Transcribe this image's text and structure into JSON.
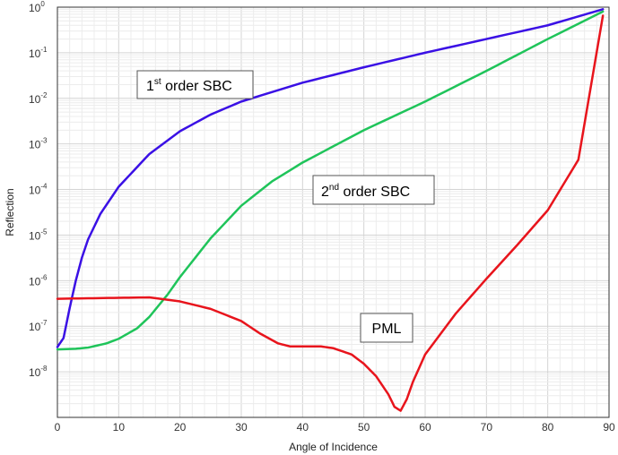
{
  "chart_data": {
    "type": "line",
    "xlabel": "Angle of Incidence",
    "ylabel": "Reflection",
    "xlim": [
      0,
      90
    ],
    "ylim_log10": [
      -9,
      0
    ],
    "y_scale": "log",
    "grid": true,
    "x_ticks": [
      "0",
      "10",
      "20",
      "30",
      "40",
      "50",
      "60",
      "70",
      "80",
      "90"
    ],
    "y_ticks": [
      {
        "base": "10",
        "exp": "0"
      },
      {
        "base": "10",
        "exp": "-1"
      },
      {
        "base": "10",
        "exp": "-2"
      },
      {
        "base": "10",
        "exp": "-3"
      },
      {
        "base": "10",
        "exp": "-4"
      },
      {
        "base": "10",
        "exp": "-5"
      },
      {
        "base": "10",
        "exp": "-6"
      },
      {
        "base": "10",
        "exp": "-7"
      },
      {
        "base": "10",
        "exp": "-8"
      }
    ],
    "annotations": [
      {
        "pre": "1",
        "sup": "st",
        "post": " order SBC",
        "series": "first_order_sbc"
      },
      {
        "pre": "2",
        "sup": "nd",
        "post": " order SBC",
        "series": "second_order_sbc"
      },
      {
        "pre": "PML",
        "sup": "",
        "post": "",
        "series": "pml"
      }
    ],
    "series": [
      {
        "key": "first_order_sbc",
        "color": "#3a10e5",
        "x": [
          0,
          1,
          2,
          3,
          4,
          5,
          7,
          10,
          15,
          20,
          25,
          30,
          40,
          50,
          60,
          70,
          80,
          89
        ],
        "y": [
          3.5e-08,
          5.5e-08,
          2.5e-07,
          1e-06,
          3.2e-06,
          8e-06,
          2.9e-05,
          0.000115,
          0.0006,
          0.0019,
          0.0044,
          0.0085,
          0.022,
          0.048,
          0.1,
          0.2,
          0.4,
          0.9
        ]
      },
      {
        "key": "second_order_sbc",
        "color": "#1fc45a",
        "x": [
          0,
          3,
          5,
          8,
          10,
          13,
          15,
          18,
          20,
          25,
          30,
          35,
          40,
          50,
          60,
          70,
          80,
          89
        ],
        "y": [
          3.1e-08,
          3.2e-08,
          3.4e-08,
          4.2e-08,
          5.3e-08,
          9e-08,
          1.6e-07,
          5e-07,
          1.2e-06,
          8.5e-06,
          4.4e-05,
          0.00015,
          0.00039,
          0.002,
          0.0085,
          0.04,
          0.2,
          0.8
        ]
      },
      {
        "key": "pml",
        "color": "#e8141c",
        "x": [
          0,
          5,
          10,
          15,
          20,
          25,
          30,
          33,
          36,
          38,
          40,
          43,
          45,
          48,
          50,
          52,
          54,
          55,
          56,
          57,
          58,
          60,
          65,
          70,
          75,
          80,
          85,
          89
        ],
        "y": [
          4e-07,
          4.1e-07,
          4.2e-07,
          4.3e-07,
          3.5e-07,
          2.4e-07,
          1.3e-07,
          7e-08,
          4.2e-08,
          3.6e-08,
          3.6e-08,
          3.6e-08,
          3.3e-08,
          2.4e-08,
          1.5e-08,
          8e-09,
          3.2e-09,
          1.7e-09,
          1.4e-09,
          2.5e-09,
          6e-09,
          2.4e-08,
          1.9e-07,
          1.1e-06,
          6e-06,
          3.5e-05,
          0.00045,
          0.65
        ]
      }
    ]
  }
}
